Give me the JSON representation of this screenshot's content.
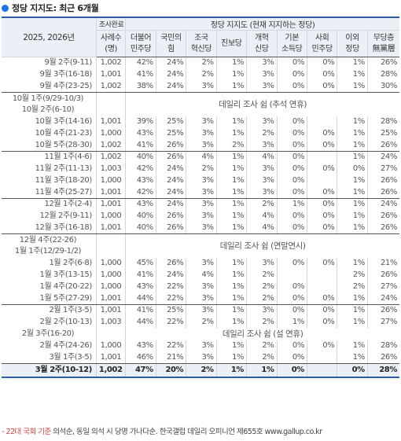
{
  "title": "정당 지지도: 최근 6개월",
  "header": {
    "period_label": "2025, 2026년",
    "sample_top": "조사완료",
    "sample_bottom": "사례수 (명)",
    "group_label": "정당 지지도 (현재 지지하는 정당)",
    "parties": [
      [
        "더불어",
        "민주당"
      ],
      [
        "국민의",
        "힘"
      ],
      [
        "조국",
        "혁신당"
      ],
      [
        "진보당",
        ""
      ],
      [
        "개혁",
        "신당"
      ],
      [
        "기본",
        "소득당"
      ],
      [
        "사회",
        "민주당"
      ],
      [
        "이외",
        "정당"
      ],
      [
        "무당층",
        "無黨層"
      ]
    ]
  },
  "rows": [
    {
      "period": "9월 2주(9-11)",
      "n": "1,002",
      "v": [
        "42%",
        "24%",
        "2%",
        "1%",
        "3%",
        "0%",
        "0%",
        "1%",
        "26%"
      ]
    },
    {
      "period": "9월 3주(16-18)",
      "n": "1,001",
      "v": [
        "41%",
        "24%",
        "2%",
        "1%",
        "3%",
        "0%",
        "0%",
        "1%",
        "28%"
      ]
    },
    {
      "period": "9월 4주(23-25)",
      "n": "1,002",
      "v": [
        "38%",
        "24%",
        "3%",
        "1%",
        "3%",
        "0%",
        "0%",
        "1%",
        "30%"
      ],
      "end": true
    },
    {
      "gap": true,
      "periods": [
        "10월 1주(9/29-10/3)",
        "10월 2주(6-10)"
      ],
      "note": "데일리 조사 쉼 (추석 연휴)"
    },
    {
      "period": "10월 3주(14-16)",
      "n": "1,001",
      "v": [
        "39%",
        "25%",
        "3%",
        "1%",
        "3%",
        "0%",
        "",
        "1%",
        "28%"
      ]
    },
    {
      "period": "10월 4주(21-23)",
      "n": "1,000",
      "v": [
        "43%",
        "25%",
        "3%",
        "1%",
        "2%",
        "0%",
        "0%",
        "1%",
        "25%"
      ]
    },
    {
      "period": "10월 5주(28-30)",
      "n": "1,002",
      "v": [
        "41%",
        "26%",
        "3%",
        "2%",
        "3%",
        "0%",
        "0%",
        "1%",
        "26%"
      ],
      "end": true
    },
    {
      "period": "11월 1주(4-6)",
      "n": "1,002",
      "v": [
        "40%",
        "26%",
        "4%",
        "1%",
        "4%",
        "0%",
        "",
        "1%",
        "24%"
      ]
    },
    {
      "period": "11월 2주(11-13)",
      "n": "1,003",
      "v": [
        "42%",
        "24%",
        "2%",
        "1%",
        "3%",
        "0%",
        "0%",
        "0%",
        "27%"
      ]
    },
    {
      "period": "11월 3주(18-20)",
      "n": "1,000",
      "v": [
        "43%",
        "24%",
        "3%",
        "1%",
        "3%",
        "0%",
        "",
        "1%",
        "26%"
      ]
    },
    {
      "period": "11월 4주(25-27)",
      "n": "1,001",
      "v": [
        "42%",
        "24%",
        "3%",
        "1%",
        "3%",
        "0%",
        "0%",
        "1%",
        "26%"
      ],
      "end": true
    },
    {
      "period": "12월 1주(2-4)",
      "n": "1,001",
      "v": [
        "43%",
        "24%",
        "3%",
        "1%",
        "2%",
        "1%",
        "0%",
        "1%",
        "24%"
      ]
    },
    {
      "period": "12월 2주(9-11)",
      "n": "1,000",
      "v": [
        "40%",
        "26%",
        "3%",
        "1%",
        "4%",
        "0%",
        "0%",
        "1%",
        "26%"
      ]
    },
    {
      "period": "12월 3주(16-18)",
      "n": "1,001",
      "v": [
        "40%",
        "26%",
        "3%",
        "1%",
        "4%",
        "0%",
        "0%",
        "1%",
        "26%"
      ],
      "end": true
    },
    {
      "gap": true,
      "periods": [
        "12월 4주(22-26)",
        "1월 1주(12/29-1/2)"
      ],
      "note": "데일리 조사 쉼 (연말연시)"
    },
    {
      "period": "1월 2주(6-8)",
      "n": "1,000",
      "v": [
        "45%",
        "26%",
        "3%",
        "1%",
        "3%",
        "0%",
        "0%",
        "1%",
        "21%"
      ]
    },
    {
      "period": "1월 3주(13-15)",
      "n": "1,000",
      "v": [
        "41%",
        "24%",
        "4%",
        "1%",
        "2%",
        "",
        "",
        "2%",
        "26%"
      ]
    },
    {
      "period": "1월 4주(20-22)",
      "n": "1,000",
      "v": [
        "43%",
        "22%",
        "3%",
        "1%",
        "2%",
        "0%",
        "",
        "2%",
        "27%"
      ]
    },
    {
      "period": "1월 5주(27-29)",
      "n": "1,001",
      "v": [
        "44%",
        "22%",
        "3%",
        "1%",
        "2%",
        "0%",
        "0%",
        "1%",
        "24%"
      ],
      "end": true
    },
    {
      "period": "2월 1주(3-5)",
      "n": "1,001",
      "v": [
        "41%",
        "25%",
        "3%",
        "1%",
        "3%",
        "0%",
        "0%",
        "1%",
        "26%"
      ]
    },
    {
      "period": "2월 2주(10-13)",
      "n": "1,003",
      "v": [
        "44%",
        "22%",
        "2%",
        "1%",
        "2%",
        "1%",
        "0%",
        "1%",
        "27%"
      ]
    },
    {
      "gap": true,
      "periods": [
        "2월 3주(16-20)"
      ],
      "note": "데일리 조사 쉼 (설 연휴)"
    },
    {
      "period": "2월 4주(24-26)",
      "n": "1,000",
      "v": [
        "43%",
        "22%",
        "3%",
        "1%",
        "2%",
        "0%",
        "0%",
        "1%",
        "28%"
      ]
    },
    {
      "period": "3월 1주(3-5)",
      "n": "1,001",
      "v": [
        "46%",
        "21%",
        "3%",
        "1%",
        "2%",
        "0%",
        "",
        "1%",
        "26%"
      ],
      "end": true
    }
  ],
  "final": {
    "period": "3월 2주(10-12)",
    "n": "1,002",
    "v": [
      "47%",
      "20%",
      "2%",
      "1%",
      "1%",
      "0%",
      "",
      "0%",
      "28%"
    ]
  },
  "footnote": {
    "red": "- 22대 국회 기준",
    "rest": " 의석순, 동일 의석 시 당명 가나다순. 한국갤럽 데일리 오피니언 제655호 www.gallup.co.kr"
  }
}
